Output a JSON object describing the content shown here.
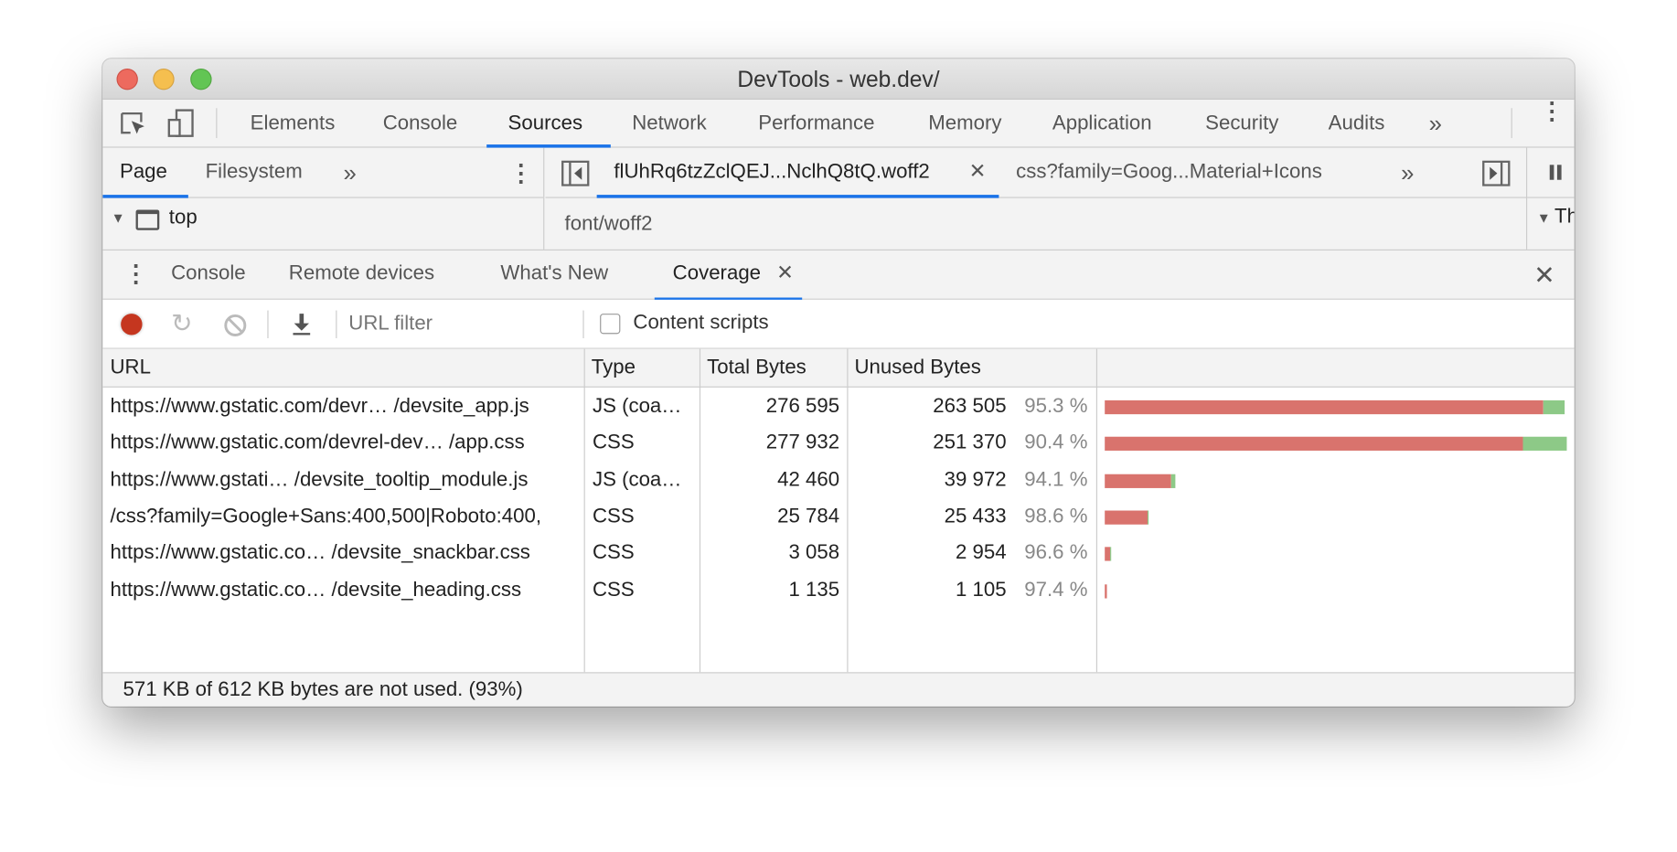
{
  "window": {
    "title": "DevTools - web.dev/"
  },
  "main_tabs": [
    "Elements",
    "Console",
    "Sources",
    "Network",
    "Performance",
    "Memory",
    "Application",
    "Security",
    "Audits"
  ],
  "main_tabs_active": "Sources",
  "more_icon": "»",
  "navigator": {
    "tabs": [
      "Page",
      "Filesystem"
    ],
    "active": "Page",
    "tree_item": "top"
  },
  "editor": {
    "tabs": [
      "flUhRq6tzZclQEJ...NclhQ8tQ.woff2",
      "css?family=Goog...Material+Icons"
    ],
    "active": 0,
    "content": "font/woff2"
  },
  "right_pane_text": "Th",
  "drawer": {
    "tabs": [
      "Console",
      "Remote devices",
      "What's New",
      "Coverage"
    ],
    "active": "Coverage"
  },
  "toolbar": {
    "url_filter_placeholder": "URL filter",
    "content_scripts_label": "Content scripts",
    "content_scripts_checked": false
  },
  "colors": {
    "accent": "#1a73e8",
    "unused": "#d9736d",
    "used": "#8dc987",
    "record": "#c5361f"
  },
  "table": {
    "headers": [
      "URL",
      "Type",
      "Total Bytes",
      "Unused Bytes"
    ],
    "rows": [
      {
        "url": "https://www.gstatic.com/devr… /devsite_app.js",
        "type": "JS (coa…",
        "total": "276 595",
        "unused": "263 505",
        "pct": "95.3 %",
        "total_n": 276595,
        "unused_n": 263505
      },
      {
        "url": "https://www.gstatic.com/devrel-dev… /app.css",
        "type": "CSS",
        "total": "277 932",
        "unused": "251 370",
        "pct": "90.4 %",
        "total_n": 277932,
        "unused_n": 251370
      },
      {
        "url": "https://www.gstati… /devsite_tooltip_module.js",
        "type": "JS (coa…",
        "total": "42 460",
        "unused": "39 972",
        "pct": "94.1 %",
        "total_n": 42460,
        "unused_n": 39972
      },
      {
        "url": "/css?family=Google+Sans:400,500|Roboto:400,",
        "type": "CSS",
        "total": "25 784",
        "unused": "25 433",
        "pct": "98.6 %",
        "total_n": 25784,
        "unused_n": 25433
      },
      {
        "url": "https://www.gstatic.co… /devsite_snackbar.css",
        "type": "CSS",
        "total": "3 058",
        "unused": "2 954",
        "pct": "96.6 %",
        "total_n": 3058,
        "unused_n": 2954
      },
      {
        "url": "https://www.gstatic.co…  /devsite_heading.css",
        "type": "CSS",
        "total": "1 135",
        "unused": "1 105",
        "pct": "97.4 %",
        "total_n": 1135,
        "unused_n": 1105
      }
    ]
  },
  "footer": "571 KB of 612 KB bytes are not used. (93%)"
}
